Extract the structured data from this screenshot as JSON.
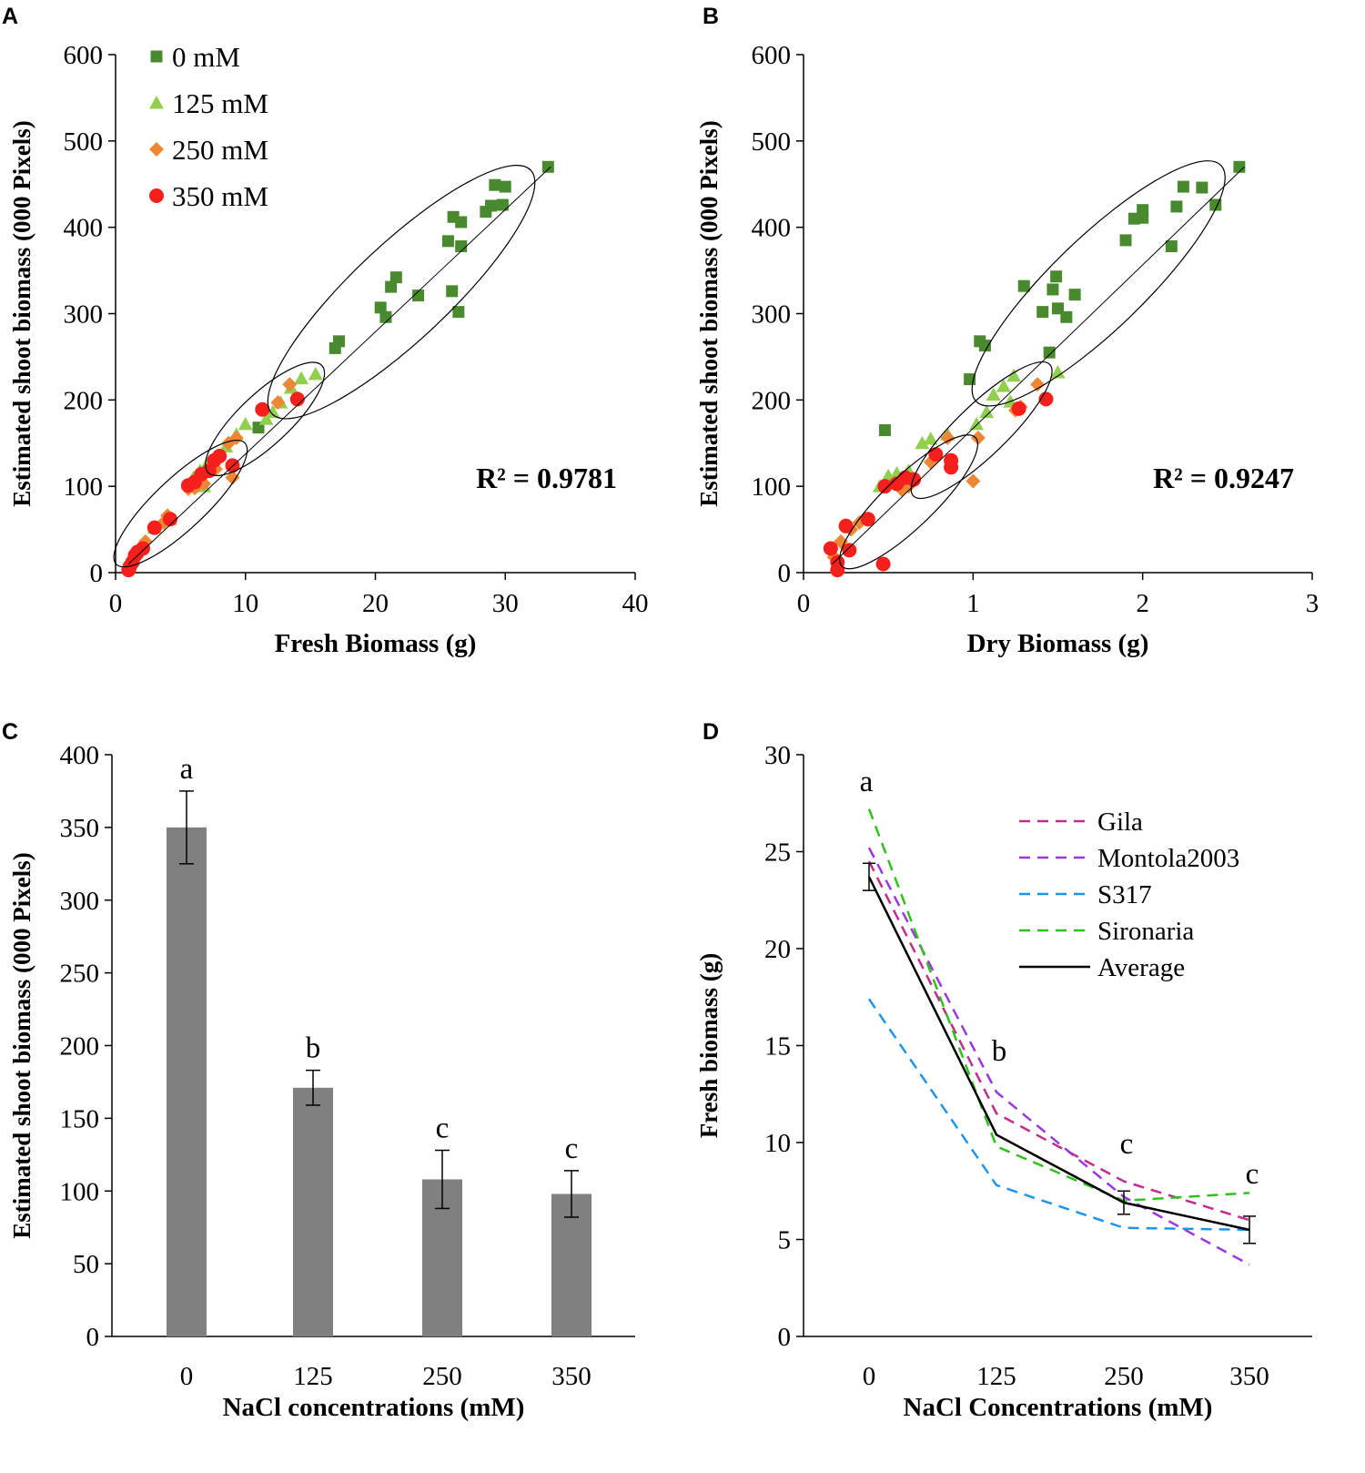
{
  "colors": {
    "c0": "#4a8a2f",
    "c125": "#93cf4f",
    "c250": "#ee8733",
    "c350": "#f5201c",
    "bar": "#808080",
    "gila": "#c32b8e",
    "montola": "#9b37e0",
    "s317": "#1e95e8",
    "sironaria": "#2fc21c",
    "average": "#000000"
  },
  "chart_data": [
    {
      "panel": "A",
      "type": "scatter",
      "xlabel": "Fresh Biomass (g)",
      "ylabel": "Estimated shoot biomass (000 Pixels)",
      "xlim": [
        0,
        40
      ],
      "ylim": [
        0,
        600
      ],
      "xticks": [
        "0",
        "10",
        "20",
        "30",
        "40"
      ],
      "yticks": [
        "0",
        "100",
        "200",
        "300",
        "400",
        "500",
        "600"
      ],
      "annotation": "R² = 0.9781",
      "trendline": [
        [
          1,
          10
        ],
        [
          33.5,
          470
        ]
      ],
      "legend": [
        "0 mM",
        "125 mM",
        "250 mM",
        "350 mM"
      ],
      "ellipses": [
        {
          "cx": 5,
          "cy": 80,
          "rx": 6.2,
          "ry": 42,
          "deg_span": [
            [
              0,
              10
            ],
            [
              10,
              150
            ]
          ]
        },
        {
          "cx": 11.5,
          "cy": 178,
          "rx": 4.5,
          "ry": 60
        },
        {
          "cx": 22,
          "cy": 325,
          "rx": 9,
          "ry": 155
        }
      ],
      "series": [
        {
          "name": "0 mM",
          "marker": "square",
          "color_key": "c0",
          "points": [
            [
              33.3,
              470
            ],
            [
              30,
              447
            ],
            [
              29.2,
              449
            ],
            [
              29.8,
              426
            ],
            [
              28.9,
              425
            ],
            [
              28.5,
              418
            ],
            [
              26.6,
              406
            ],
            [
              26,
              412
            ],
            [
              25.6,
              384
            ],
            [
              26.6,
              378
            ],
            [
              25.9,
              326
            ],
            [
              26.4,
              302
            ],
            [
              23.3,
              321
            ],
            [
              21.6,
              342
            ],
            [
              21.2,
              331
            ],
            [
              20.4,
              307
            ],
            [
              20.8,
              296
            ],
            [
              17.2,
              268
            ],
            [
              16.9,
              260
            ],
            [
              11,
              168
            ]
          ]
        },
        {
          "name": "125 mM",
          "marker": "triangle",
          "color_key": "c125",
          "points": [
            [
              15.4,
              230
            ],
            [
              14.3,
              225
            ],
            [
              13.5,
              214
            ],
            [
              12.7,
              197
            ],
            [
              12.1,
              186
            ],
            [
              11.6,
              178
            ],
            [
              10,
              172
            ],
            [
              9.3,
              160
            ],
            [
              8.5,
              146
            ],
            [
              7.5,
              130
            ],
            [
              7,
              125
            ],
            [
              6.5,
              118
            ],
            [
              6,
              110
            ],
            [
              6.8,
              100
            ],
            [
              4.2,
              62
            ],
            [
              3,
              52
            ]
          ]
        },
        {
          "name": "250 mM",
          "marker": "diamond",
          "color_key": "c250",
          "points": [
            [
              13.4,
              218
            ],
            [
              12.5,
              197
            ],
            [
              9.3,
              156
            ],
            [
              8.7,
              150
            ],
            [
              9,
              110
            ],
            [
              7.7,
              120
            ],
            [
              6.8,
              103
            ],
            [
              6.1,
              98
            ],
            [
              5.6,
              97
            ],
            [
              4,
              66
            ],
            [
              3.7,
              58
            ],
            [
              2.3,
              36
            ],
            [
              1.8,
              26
            ],
            [
              1.6,
              18
            ]
          ]
        },
        {
          "name": "350 mM",
          "marker": "circle",
          "color_key": "c350",
          "points": [
            [
              14,
              201
            ],
            [
              11.3,
              189
            ],
            [
              8,
              135
            ],
            [
              7.6,
              130
            ],
            [
              9,
              124
            ],
            [
              7.2,
              118
            ],
            [
              6.6,
              114
            ],
            [
              6.1,
              105
            ],
            [
              5.6,
              101
            ],
            [
              4.2,
              62
            ],
            [
              3,
              52
            ],
            [
              2.1,
              28
            ],
            [
              1.7,
              24
            ],
            [
              1.5,
              20
            ],
            [
              1.3,
              12
            ],
            [
              1.1,
              7
            ],
            [
              1,
              3
            ]
          ]
        }
      ]
    },
    {
      "panel": "B",
      "type": "scatter",
      "xlabel": "Dry Biomass (g)",
      "ylabel": "Estimated shoot biomass (000 Pixels)",
      "xlim": [
        0,
        3
      ],
      "ylim": [
        0,
        600
      ],
      "xticks": [
        "0",
        "1",
        "2",
        "3"
      ],
      "yticks": [
        "0",
        "100",
        "200",
        "300",
        "400",
        "500",
        "600"
      ],
      "annotation": "R² = 0.9247",
      "trendline": [
        [
          0.17,
          10
        ],
        [
          2.6,
          470
        ]
      ],
      "ellipses": [
        {
          "cx": 0.62,
          "cy": 82,
          "rx": 0.46,
          "ry": 58
        },
        {
          "cx": 1.05,
          "cy": 165,
          "rx": 0.43,
          "ry": 70
        },
        {
          "cx": 1.74,
          "cy": 335,
          "rx": 0.65,
          "ry": 150
        }
      ],
      "series": [
        {
          "name": "0 mM",
          "marker": "square",
          "color_key": "c0",
          "points": [
            [
              2.57,
              470
            ],
            [
              2.24,
              447
            ],
            [
              2.35,
              446
            ],
            [
              2.2,
              424
            ],
            [
              2.43,
              426
            ],
            [
              2,
              420
            ],
            [
              1.95,
              410
            ],
            [
              2,
              411
            ],
            [
              1.9,
              385
            ],
            [
              2.17,
              378
            ],
            [
              1.49,
              343
            ],
            [
              1.47,
              328
            ],
            [
              1.6,
              322
            ],
            [
              1.41,
              302
            ],
            [
              1.55,
              296
            ],
            [
              1.5,
              306
            ],
            [
              1.3,
              332
            ],
            [
              1.04,
              268
            ],
            [
              1.07,
              263
            ],
            [
              0.98,
              224
            ],
            [
              1.45,
              255
            ],
            [
              0.48,
              165
            ]
          ]
        },
        {
          "name": "125 mM",
          "marker": "triangle",
          "color_key": "c125",
          "points": [
            [
              1.5,
              232
            ],
            [
              1.24,
              228
            ],
            [
              1.18,
              216
            ],
            [
              1.12,
              206
            ],
            [
              1.22,
              198
            ],
            [
              1.08,
              186
            ],
            [
              1.02,
              172
            ],
            [
              0.85,
              160
            ],
            [
              0.75,
              155
            ],
            [
              0.7,
              150
            ],
            [
              0.62,
              118
            ],
            [
              0.55,
              115
            ],
            [
              0.5,
              112
            ],
            [
              0.45,
              100
            ]
          ]
        },
        {
          "name": "250 mM",
          "marker": "diamond",
          "color_key": "c250",
          "points": [
            [
              1.38,
              218
            ],
            [
              1.28,
              192
            ],
            [
              1.25,
              188
            ],
            [
              1.03,
              156
            ],
            [
              0.85,
              156
            ],
            [
              0.75,
              128
            ],
            [
              1,
              106
            ],
            [
              0.62,
              100
            ],
            [
              0.58,
              96
            ],
            [
              0.33,
              58
            ],
            [
              0.28,
              50
            ],
            [
              0.22,
              36
            ],
            [
              0.18,
              18
            ]
          ]
        },
        {
          "name": "350 mM",
          "marker": "circle",
          "color_key": "c350",
          "points": [
            [
              1.43,
              201
            ],
            [
              1.27,
              190
            ],
            [
              0.78,
              137
            ],
            [
              0.87,
              130
            ],
            [
              0.87,
              122
            ],
            [
              0.6,
              110
            ],
            [
              0.65,
              108
            ],
            [
              0.55,
              103
            ],
            [
              0.48,
              100
            ],
            [
              0.38,
              62
            ],
            [
              0.25,
              54
            ],
            [
              0.16,
              28
            ],
            [
              0.27,
              26
            ],
            [
              0.2,
              12
            ],
            [
              0.47,
              10
            ],
            [
              0.2,
              3
            ]
          ]
        }
      ]
    },
    {
      "panel": "C",
      "type": "bar",
      "xlabel": "NaCl concentrations  (mM)",
      "ylabel": "Estimated shoot biomass (000 Pixels)",
      "ylim": [
        0,
        400
      ],
      "yticks": [
        "0",
        "50",
        "100",
        "150",
        "200",
        "250",
        "300",
        "350",
        "400"
      ],
      "categories": [
        "0",
        "125",
        "250",
        "350"
      ],
      "values": [
        350,
        171,
        108,
        98
      ],
      "errors": [
        25,
        12,
        20,
        16
      ],
      "letters": [
        "a",
        "b",
        "c",
        "c"
      ]
    },
    {
      "panel": "D",
      "type": "line",
      "xlabel": "NaCl Concentrations  (mM)",
      "ylabel": "Fresh biomass (g)",
      "ylim": [
        0,
        30
      ],
      "yticks": [
        "0",
        "5",
        "10",
        "15",
        "20",
        "25",
        "30"
      ],
      "categories": [
        "0",
        "125",
        "250",
        "350"
      ],
      "letters": [
        "a",
        "b",
        "c",
        "c"
      ],
      "series": [
        {
          "name": "Gila",
          "color_key": "gila",
          "dashed": true,
          "values": [
            24.5,
            11.5,
            8.0,
            6.0
          ]
        },
        {
          "name": "Montola2003",
          "color_key": "montola",
          "dashed": true,
          "values": [
            25.2,
            12.6,
            7.2,
            3.7
          ]
        },
        {
          "name": "S317",
          "color_key": "s317",
          "dashed": true,
          "values": [
            17.4,
            7.8,
            5.6,
            5.5
          ]
        },
        {
          "name": "Sironaria",
          "color_key": "sironaria",
          "dashed": true,
          "values": [
            27.2,
            9.8,
            7.0,
            7.4
          ]
        },
        {
          "name": "Average",
          "color_key": "average",
          "dashed": false,
          "values": [
            23.7,
            10.4,
            6.9,
            5.5
          ],
          "errors": [
            0.7,
            0,
            0.6,
            0.7
          ]
        }
      ]
    }
  ],
  "panel_labels": [
    "A",
    "B",
    "C",
    "D"
  ]
}
